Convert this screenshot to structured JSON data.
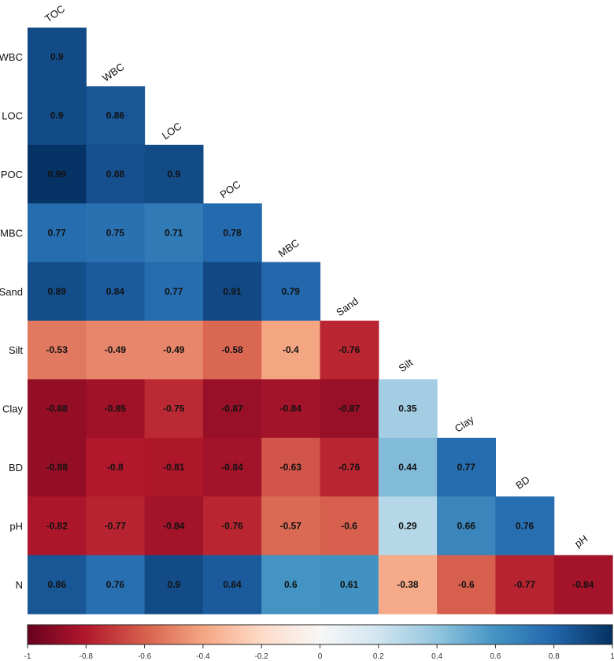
{
  "chart_data": {
    "type": "heatmap",
    "shape": "lower-triangle",
    "variables": [
      "TOC",
      "WBC",
      "LOC",
      "POC",
      "MBC",
      "Sand",
      "Silt",
      "Clay",
      "BD",
      "pH",
      "N"
    ],
    "rows": [
      "WBC",
      "LOC",
      "POC",
      "MBC",
      "Sand",
      "Silt",
      "Clay",
      "BD",
      "pH",
      "N"
    ],
    "columns": [
      "TOC",
      "WBC",
      "LOC",
      "POC",
      "MBC",
      "Sand",
      "Silt",
      "Clay",
      "BD",
      "pH"
    ],
    "values": [
      [
        0.9
      ],
      [
        0.9,
        0.86
      ],
      [
        0.99,
        0.88,
        0.9
      ],
      [
        0.77,
        0.75,
        0.71,
        0.78
      ],
      [
        0.89,
        0.84,
        0.77,
        0.91,
        0.79
      ],
      [
        -0.53,
        -0.49,
        -0.49,
        -0.58,
        -0.4,
        -0.76
      ],
      [
        -0.88,
        -0.85,
        -0.75,
        -0.87,
        -0.84,
        -0.87,
        0.35
      ],
      [
        -0.88,
        -0.8,
        -0.81,
        -0.84,
        -0.63,
        -0.76,
        0.44,
        0.77
      ],
      [
        -0.82,
        -0.77,
        -0.84,
        -0.76,
        -0.57,
        -0.6,
        0.29,
        0.66,
        0.76
      ],
      [
        0.86,
        0.76,
        0.9,
        0.84,
        0.6,
        0.61,
        -0.38,
        -0.6,
        -0.77,
        -0.84
      ]
    ],
    "colorbar": {
      "range": [
        -1,
        1
      ],
      "ticks": [
        "-1",
        "-0.8",
        "-0.6",
        "-0.4",
        "-0.2",
        "0",
        "0.2",
        "0.4",
        "0.6",
        "0.8",
        "1"
      ],
      "colors": [
        "#67001f",
        "#b2182b",
        "#d6604d",
        "#f4a582",
        "#fddbc7",
        "#f7f7f7",
        "#d1e5f0",
        "#92c5de",
        "#4393c3",
        "#2166ac",
        "#053061"
      ]
    },
    "title": "",
    "xlabel": "",
    "ylabel": ""
  }
}
